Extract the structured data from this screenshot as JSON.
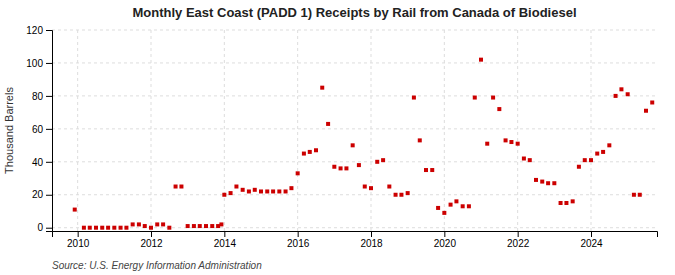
{
  "chart_data": {
    "type": "scatter",
    "title": "Monthly East Coast (PADD 1) Receipts by Rail from Canada of Biodiesel",
    "ylabel": "Thousand Barrels",
    "annotations": [
      "Source: U.S. Energy Information Administration"
    ],
    "color": "#cc0000",
    "marker": "square",
    "grid": true,
    "xlim": [
      2009.3,
      2025.8
    ],
    "xticks": [
      2010,
      2012,
      2014,
      2016,
      2018,
      2020,
      2022,
      2024
    ],
    "ylim": [
      -2,
      120
    ],
    "yticks": [
      0,
      20,
      40,
      60,
      80,
      100,
      120
    ],
    "x": [
      2009.92,
      2010.17,
      2010.33,
      2010.5,
      2010.67,
      2010.83,
      2011.0,
      2011.17,
      2011.33,
      2011.5,
      2011.67,
      2011.83,
      2012.0,
      2012.17,
      2012.33,
      2012.5,
      2012.67,
      2012.83,
      2013.0,
      2013.17,
      2013.33,
      2013.5,
      2013.67,
      2013.83,
      2013.92,
      2014.0,
      2014.17,
      2014.33,
      2014.5,
      2014.67,
      2014.83,
      2015.0,
      2015.17,
      2015.33,
      2015.5,
      2015.67,
      2015.83,
      2016.0,
      2016.17,
      2016.33,
      2016.5,
      2016.67,
      2016.83,
      2017.0,
      2017.17,
      2017.33,
      2017.5,
      2017.67,
      2017.83,
      2018.0,
      2018.17,
      2018.33,
      2018.5,
      2018.67,
      2018.83,
      2019.0,
      2019.17,
      2019.33,
      2019.5,
      2019.67,
      2019.83,
      2020.0,
      2020.17,
      2020.33,
      2020.5,
      2020.67,
      2020.83,
      2021.0,
      2021.17,
      2021.33,
      2021.5,
      2021.67,
      2021.83,
      2022.0,
      2022.17,
      2022.33,
      2022.5,
      2022.67,
      2022.83,
      2023.0,
      2023.17,
      2023.33,
      2023.5,
      2023.67,
      2023.83,
      2024.0,
      2024.17,
      2024.33,
      2024.5,
      2024.67,
      2024.83,
      2025.0,
      2025.17,
      2025.33,
      2025.5,
      2025.67
    ],
    "values": [
      11,
      0,
      0,
      0,
      0,
      0,
      0,
      0,
      0,
      2,
      2,
      1,
      0,
      2,
      2,
      0,
      25,
      25,
      1,
      1,
      1,
      1,
      1,
      1,
      2,
      20,
      21,
      25,
      23,
      22,
      23,
      22,
      22,
      22,
      22,
      22,
      24,
      33,
      45,
      46,
      47,
      85,
      63,
      37,
      36,
      36,
      50,
      38,
      25,
      24,
      40,
      41,
      25,
      20,
      20,
      21,
      79,
      53,
      35,
      35,
      12,
      9,
      14,
      16,
      13,
      13,
      79,
      102,
      51,
      79,
      72,
      53,
      52,
      51,
      42,
      41,
      29,
      28,
      27,
      27,
      15,
      15,
      16,
      37,
      41,
      41,
      45,
      46,
      50,
      80,
      84,
      81,
      20,
      20,
      71,
      76
    ]
  }
}
